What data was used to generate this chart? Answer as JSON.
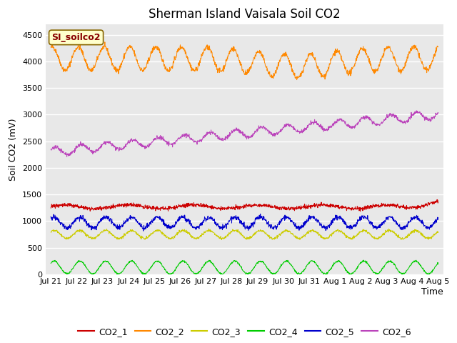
{
  "title": "Sherman Island Vaisala Soil CO2",
  "xlabel": "Time",
  "ylabel": "Soil CO2 (mV)",
  "legend_label": "SI_soilco2",
  "ylim": [
    0,
    4700
  ],
  "yticks": [
    0,
    500,
    1000,
    1500,
    2000,
    2500,
    3000,
    3500,
    4000,
    4500
  ],
  "xtick_labels": [
    "Jul 21",
    "Jul 22",
    "Jul 23",
    "Jul 24",
    "Jul 25",
    "Jul 26",
    "Jul 27",
    "Jul 28",
    "Jul 29",
    "Jul 30",
    "Jul 31",
    "Aug 1",
    "Aug 2",
    "Aug 3",
    "Aug 4",
    "Aug 5"
  ],
  "colors": {
    "CO2_1": "#cc0000",
    "CO2_2": "#ff8800",
    "CO2_3": "#cccc00",
    "CO2_4": "#00cc00",
    "CO2_5": "#0000cc",
    "CO2_6": "#bb44bb"
  },
  "n_points": 1500,
  "duration_days": 15,
  "bg_color": "#e8e8e8",
  "grid_color": "#ffffff",
  "title_fontsize": 12,
  "label_fontsize": 9,
  "tick_fontsize": 8,
  "legend_box_color": "#ffffcc",
  "legend_box_edge": "#886600",
  "legend_text_color": "#880000"
}
